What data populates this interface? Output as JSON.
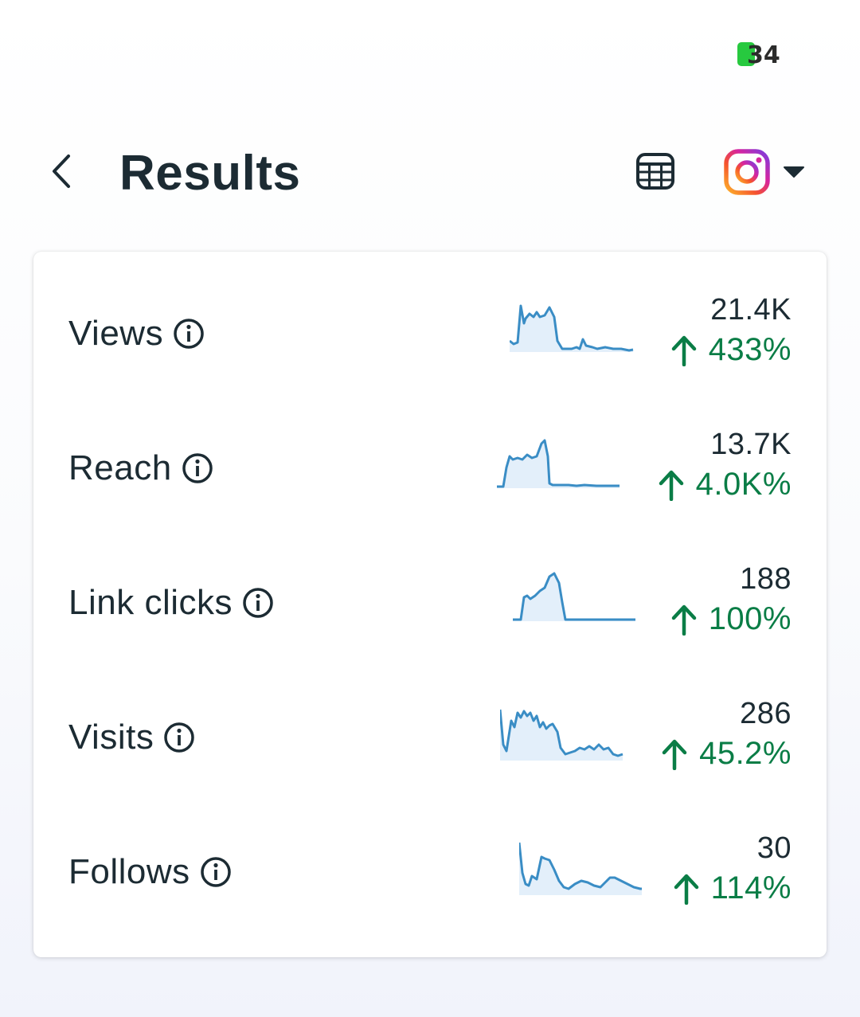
{
  "status_bar": {
    "battery_level": "34",
    "battery_color": "#27c93f"
  },
  "header": {
    "title": "Results",
    "back_icon": "chevron-left-icon",
    "calendar_icon": "calendar-icon",
    "platform_icon": "instagram-icon",
    "dropdown_icon": "caret-down-icon"
  },
  "colors": {
    "positive": "#0a7d46",
    "sparkline": "#3a8dc5",
    "sparkline_fill": "#e3effa"
  },
  "metrics": [
    {
      "label": "Views",
      "value": "21.4K",
      "change": "433%",
      "trend": "up"
    },
    {
      "label": "Reach",
      "value": "13.7K",
      "change": "4.0K%",
      "trend": "up"
    },
    {
      "label": "Link clicks",
      "value": "188",
      "change": "100%",
      "trend": "up"
    },
    {
      "label": "Visits",
      "value": "286",
      "change": "45.2%",
      "trend": "up"
    },
    {
      "label": "Follows",
      "value": "30",
      "change": "114%",
      "trend": "up"
    }
  ]
}
